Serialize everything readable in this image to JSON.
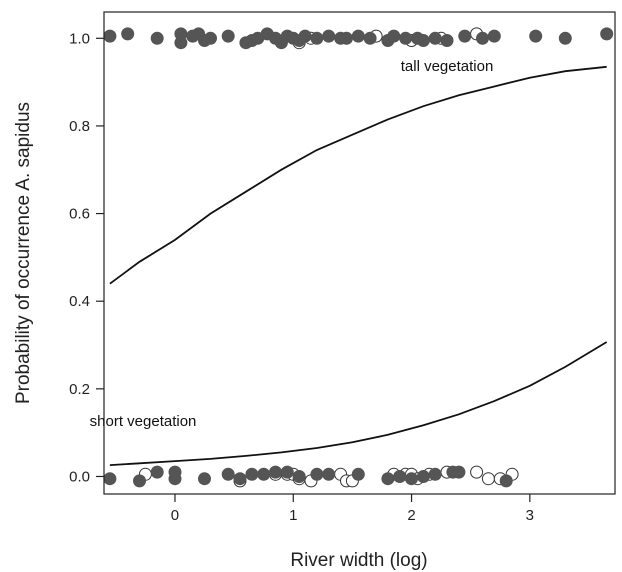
{
  "chart_data": {
    "type": "line",
    "title": "",
    "xlabel": "River width (log)",
    "ylabel": "Probability of occurrence A. sapidus",
    "xlim": [
      -0.6,
      3.72
    ],
    "ylim": [
      -0.04,
      1.06
    ],
    "xticks": [
      0,
      1,
      2,
      3
    ],
    "yticks": [
      0.0,
      0.2,
      0.4,
      0.6,
      0.8,
      1.0
    ],
    "grid": false,
    "legend": "none",
    "annotations": [
      {
        "text": "tall vegetation",
        "x": 2.3,
        "y": 0.925
      },
      {
        "text": "short vegetation",
        "x": -0.27,
        "y": 0.115
      }
    ],
    "series": [
      {
        "x": [
          -0.55,
          -0.3,
          0.0,
          0.3,
          0.6,
          0.9,
          1.2,
          1.5,
          1.8,
          2.1,
          2.4,
          2.7,
          3.0,
          3.3,
          3.65
        ],
        "y": [
          0.44,
          0.49,
          0.54,
          0.6,
          0.65,
          0.7,
          0.745,
          0.78,
          0.815,
          0.845,
          0.87,
          0.89,
          0.91,
          0.925,
          0.935
        ]
      },
      {
        "x": [
          -0.55,
          -0.3,
          0.0,
          0.3,
          0.6,
          0.9,
          1.2,
          1.5,
          1.8,
          2.1,
          2.4,
          2.7,
          3.0,
          3.3,
          3.65
        ],
        "y": [
          0.026,
          0.03,
          0.035,
          0.04,
          0.047,
          0.055,
          0.065,
          0.078,
          0.095,
          0.117,
          0.142,
          0.172,
          0.207,
          0.25,
          0.307
        ]
      }
    ],
    "observations": {
      "filled_color": "#555555",
      "open_color": "#ffffff",
      "top_filled": [
        [
          -0.55,
          1.005
        ],
        [
          -0.4,
          1.01
        ],
        [
          -0.15,
          1.0
        ],
        [
          0.05,
          1.01
        ],
        [
          0.15,
          1.005
        ],
        [
          0.2,
          1.01
        ],
        [
          0.3,
          1.0
        ],
        [
          0.05,
          0.99
        ],
        [
          0.25,
          0.995
        ],
        [
          0.45,
          1.005
        ],
        [
          0.6,
          0.99
        ],
        [
          0.65,
          0.995
        ],
        [
          0.7,
          1.0
        ],
        [
          0.78,
          1.01
        ],
        [
          0.85,
          1.0
        ],
        [
          0.9,
          0.99
        ],
        [
          0.95,
          1.005
        ],
        [
          1.0,
          1.0
        ],
        [
          1.05,
          0.995
        ],
        [
          1.1,
          1.005
        ],
        [
          1.2,
          1.0
        ],
        [
          1.3,
          1.005
        ],
        [
          1.4,
          1.0
        ],
        [
          1.45,
          1.0
        ],
        [
          1.55,
          1.005
        ],
        [
          1.65,
          1.0
        ],
        [
          1.8,
          0.995
        ],
        [
          1.85,
          1.005
        ],
        [
          1.95,
          1.0
        ],
        [
          2.05,
          1.0
        ],
        [
          2.1,
          0.995
        ],
        [
          2.2,
          1.0
        ],
        [
          2.3,
          0.995
        ],
        [
          2.45,
          1.005
        ],
        [
          2.6,
          1.0
        ],
        [
          2.7,
          1.005
        ],
        [
          3.05,
          1.005
        ],
        [
          3.3,
          1.0
        ],
        [
          3.65,
          1.01
        ]
      ],
      "top_open": [
        [
          1.05,
          0.99
        ],
        [
          1.15,
          1.0
        ],
        [
          1.7,
          1.005
        ],
        [
          2.0,
          0.995
        ],
        [
          2.25,
          1.0
        ],
        [
          2.55,
          1.01
        ]
      ],
      "bottom_filled": [
        [
          -0.55,
          -0.005
        ],
        [
          -0.3,
          -0.01
        ],
        [
          -0.15,
          0.01
        ],
        [
          0.0,
          -0.005
        ],
        [
          0.0,
          0.01
        ],
        [
          0.25,
          -0.005
        ],
        [
          0.45,
          0.005
        ],
        [
          0.55,
          -0.005
        ],
        [
          0.65,
          0.005
        ],
        [
          0.75,
          0.005
        ],
        [
          0.85,
          0.01
        ],
        [
          0.95,
          0.01
        ],
        [
          1.05,
          0.0
        ],
        [
          1.2,
          0.005
        ],
        [
          1.3,
          0.005
        ],
        [
          1.55,
          0.005
        ],
        [
          1.8,
          -0.005
        ],
        [
          1.9,
          0.0
        ],
        [
          2.0,
          -0.005
        ],
        [
          2.1,
          0.0
        ],
        [
          2.2,
          0.005
        ],
        [
          2.35,
          0.01
        ],
        [
          2.4,
          0.01
        ],
        [
          2.8,
          -0.01
        ]
      ],
      "bottom_open": [
        [
          -0.25,
          0.005
        ],
        [
          0.55,
          -0.01
        ],
        [
          0.85,
          0.005
        ],
        [
          0.95,
          0.005
        ],
        [
          1.0,
          0.005
        ],
        [
          1.05,
          -0.005
        ],
        [
          1.15,
          -0.01
        ],
        [
          1.4,
          0.005
        ],
        [
          1.45,
          -0.01
        ],
        [
          1.5,
          -0.01
        ],
        [
          1.85,
          0.005
        ],
        [
          1.95,
          0.005
        ],
        [
          2.0,
          0.005
        ],
        [
          2.05,
          -0.005
        ],
        [
          2.15,
          0.005
        ],
        [
          2.3,
          0.01
        ],
        [
          2.55,
          0.01
        ],
        [
          2.65,
          -0.005
        ],
        [
          2.75,
          -0.005
        ],
        [
          2.85,
          0.005
        ]
      ]
    }
  }
}
